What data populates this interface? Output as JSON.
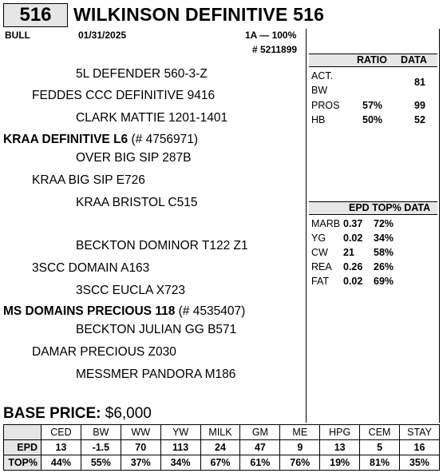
{
  "header": {
    "lot": "516",
    "title": "WILKINSON DEFINITIVE 516",
    "sex": "BULL",
    "birth_date": "01/31/2025",
    "tattoo": "1A — 100%",
    "reg": "# 5211899"
  },
  "ratio_data": {
    "col_ratio": "RATIO",
    "col_data": "DATA",
    "act_label": "ACT.",
    "bw_label": "BW",
    "bw_data": "81",
    "pros_label": "PROS",
    "pros_ratio": "57%",
    "pros_data": "99",
    "hb_label": "HB",
    "hb_ratio": "50%",
    "hb_data": "52"
  },
  "carcass": {
    "header": "EPD TOP% DATA",
    "rows": [
      {
        "label": "MARB",
        "epd": "0.37",
        "top": "72%"
      },
      {
        "label": "YG",
        "epd": "0.02",
        "top": "34%"
      },
      {
        "label": "CW",
        "epd": "21",
        "top": "58%"
      },
      {
        "label": "REA",
        "epd": "0.26",
        "top": "26%"
      },
      {
        "label": "FAT",
        "epd": "0.02",
        "top": "69%"
      }
    ]
  },
  "pedigree": {
    "sire_sire_sire": "5L DEFENDER 560-3-Z",
    "sire_sire": "FEDDES CCC DEFINITIVE 9416",
    "sire_sire_dam": "CLARK MATTIE 1201-1401",
    "sire": "KRAA DEFINITIVE L6",
    "sire_reg": "(# 4756971)",
    "sire_dam_sire": "OVER BIG SIP 287B",
    "sire_dam": "KRAA BIG SIP E726",
    "sire_dam_dam": "KRAA BRISTOL C515",
    "dam_sire_sire": "BECKTON DOMINOR T122 Z1",
    "dam_sire": "3SCC DOMAIN A163",
    "dam_sire_dam": "3SCC EUCLA X723",
    "dam": "MS DOMAINS PRECIOUS 118",
    "dam_reg": "(# 4535407)",
    "dam_dam_sire": "BECKTON JULIAN GG B571",
    "dam_dam": "DAMAR PRECIOUS Z030",
    "dam_dam_dam": "MESSMER PANDORA M186"
  },
  "base_price": {
    "label": "BASE PRICE:",
    "value": "$6,000"
  },
  "epd_table": {
    "columns": [
      "CED",
      "BW",
      "WW",
      "YW",
      "MILK",
      "GM",
      "ME",
      "HPG",
      "CEM",
      "STAY"
    ],
    "epd_label": "EPD",
    "epd": [
      "13",
      "-1.5",
      "70",
      "113",
      "24",
      "47",
      "9",
      "13",
      "5",
      "16"
    ],
    "top_label": "TOP%",
    "top": [
      "44%",
      "55%",
      "37%",
      "34%",
      "67%",
      "61%",
      "76%",
      "19%",
      "81%",
      "35%"
    ]
  }
}
